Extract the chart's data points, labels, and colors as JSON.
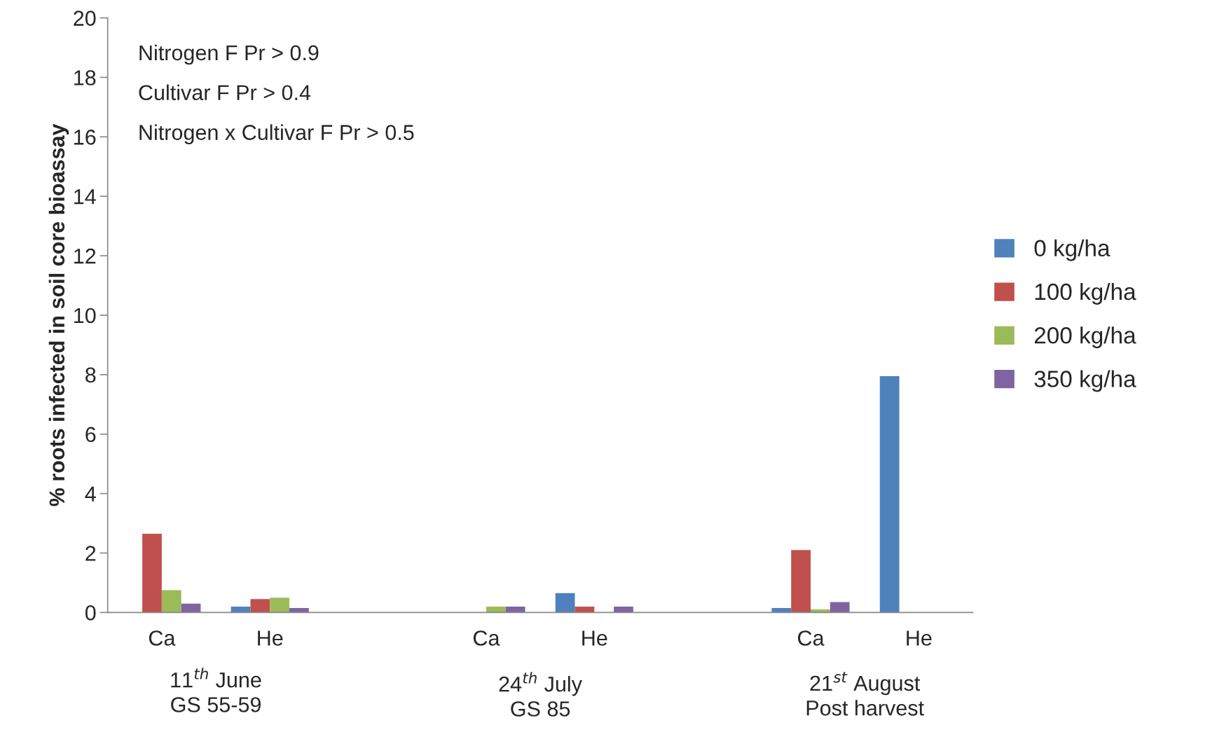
{
  "chart_data": {
    "type": "bar",
    "ylabel": "% roots infected in soil core bioassay",
    "categories": [
      "Ca",
      "He",
      null,
      "Ca",
      "He",
      null,
      "Ca",
      "He"
    ],
    "series": [
      {
        "name": "0 kg/ha",
        "color": "#4f81bd",
        "values": [
          0,
          0.2,
          null,
          0,
          0.65,
          null,
          0.15,
          7.95
        ]
      },
      {
        "name": "100 kg/ha",
        "color": "#c0504d",
        "values": [
          2.65,
          0.45,
          null,
          0,
          0.2,
          null,
          2.1,
          0
        ]
      },
      {
        "name": "200 kg/ha",
        "color": "#9bbb59",
        "values": [
          0.75,
          0.5,
          null,
          0.2,
          0,
          null,
          0.1,
          0
        ]
      },
      {
        "name": "350 kg/ha",
        "color": "#8064a2",
        "values": [
          0.3,
          0.15,
          null,
          0.2,
          0.2,
          null,
          0.35,
          0
        ]
      }
    ],
    "ylim": [
      0,
      20
    ],
    "yticks": [
      0,
      2,
      4,
      6,
      8,
      10,
      12,
      14,
      16,
      18,
      20
    ],
    "grid": false,
    "legend": "right",
    "annotations": [
      "Nitrogen F Pr > 0.9",
      "Cultivar F Pr > 0.4",
      "Nitrogen x Cultivar F Pr > 0.5",
      "11$^{th}$ June\nGS 55-59",
      "24$^{th}$ July\nGS 85",
      "21$^{st}$ August\nPost harvest"
    ]
  }
}
